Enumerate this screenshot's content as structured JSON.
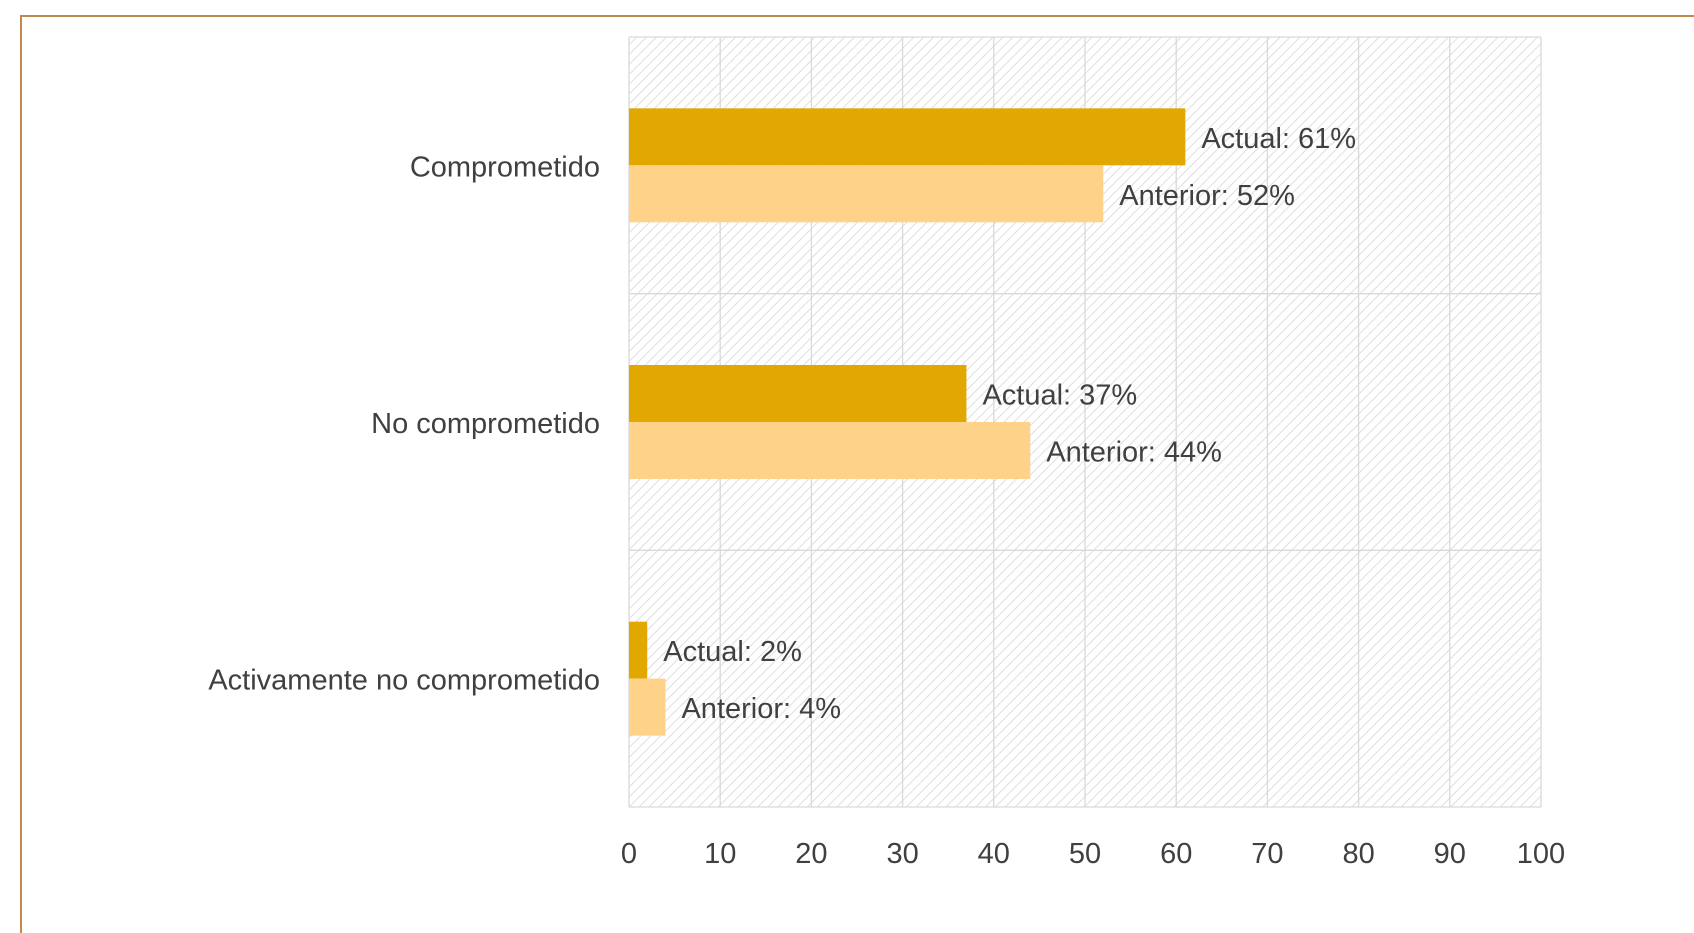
{
  "chart_data": {
    "type": "bar",
    "orientation": "horizontal",
    "categories": [
      "Comprometido",
      "No comprometido",
      "Activamente no comprometido"
    ],
    "series": [
      {
        "key": "actual",
        "values": [
          61,
          37,
          2
        ],
        "color": "#e0a800",
        "data_labels": [
          "Actual: 61%",
          "Actual: 37%",
          "Actual: 2%"
        ]
      },
      {
        "key": "anterior",
        "values": [
          52,
          44,
          4
        ],
        "color": "#ffd28a",
        "data_labels": [
          "Anterior: 52%",
          "Anterior: 44%",
          "Anterior: 4%"
        ]
      }
    ],
    "xlim": [
      0,
      100
    ],
    "x_ticks": [
      0,
      10,
      20,
      30,
      40,
      50,
      60,
      70,
      80,
      90,
      100
    ],
    "grid": true,
    "legend": "none",
    "title": "",
    "xlabel": "",
    "ylabel": "",
    "colors": {
      "frame_border": "#c0894e",
      "gridline": "#d9d9d9",
      "hatch": "#d9d9d9",
      "text": "#404040"
    }
  }
}
